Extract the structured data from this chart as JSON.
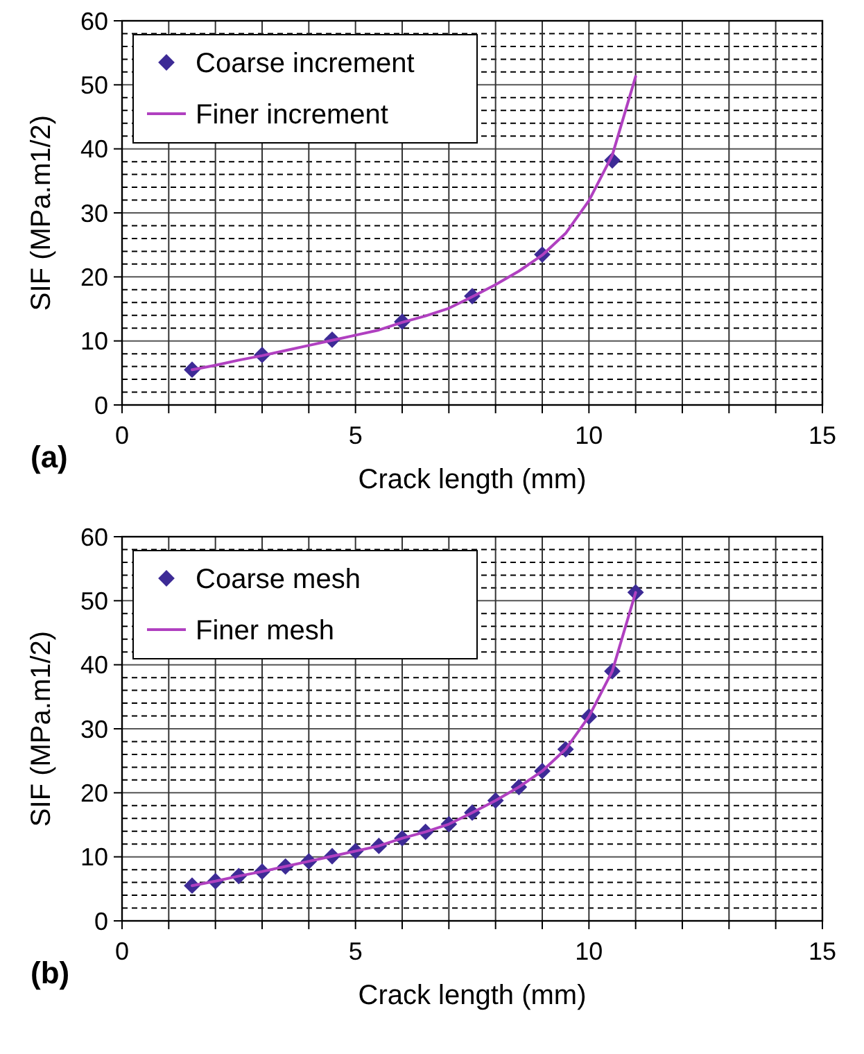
{
  "chart_data": [
    {
      "type": "line",
      "xlabel": "Crack length (mm)",
      "ylabel": "SIF (MPa.m1/2)",
      "annotations": [
        "(a)"
      ],
      "xlim": [
        0,
        15
      ],
      "ylim": [
        0,
        60
      ],
      "xticks": [
        0,
        {
          "value": 1,
          "label": null
        },
        {
          "value": 2,
          "label": null
        },
        {
          "value": 3,
          "label": null
        },
        {
          "value": 4,
          "label": null
        },
        5,
        {
          "value": 6,
          "label": null
        },
        {
          "value": 7,
          "label": null
        },
        {
          "value": 8,
          "label": null
        },
        {
          "value": 9,
          "label": null
        },
        10,
        {
          "value": 11,
          "label": null
        },
        {
          "value": 12,
          "label": null
        },
        {
          "value": 13,
          "label": null
        },
        {
          "value": 14,
          "label": null
        },
        15
      ],
      "yticks": [
        0,
        {
          "value": 2,
          "label": null
        },
        {
          "value": 4,
          "label": null
        },
        {
          "value": 6,
          "label": null
        },
        {
          "value": 8,
          "label": null
        },
        10,
        {
          "value": 12,
          "label": null
        },
        {
          "value": 14,
          "label": null
        },
        {
          "value": 16,
          "label": null
        },
        {
          "value": 18,
          "label": null
        },
        20,
        {
          "value": 22,
          "label": null
        },
        {
          "value": 24,
          "label": null
        },
        {
          "value": 26,
          "label": null
        },
        {
          "value": 28,
          "label": null
        },
        30,
        {
          "value": 32,
          "label": null
        },
        {
          "value": 34,
          "label": null
        },
        {
          "value": 36,
          "label": null
        },
        {
          "value": 38,
          "label": null
        },
        40,
        {
          "value": 42,
          "label": null
        },
        {
          "value": 44,
          "label": null
        },
        {
          "value": 46,
          "label": null
        },
        {
          "value": 48,
          "label": null
        },
        50,
        {
          "value": 52,
          "label": null
        },
        {
          "value": 54,
          "label": null
        },
        {
          "value": 56,
          "label": null
        },
        {
          "value": 58,
          "label": null
        },
        60
      ],
      "grid": true,
      "legend": "top left",
      "series": [
        {
          "name": "Coarse increment",
          "type": "scatter",
          "marker": "diamond",
          "color": "#3d2b96",
          "x": [
            1.5,
            3,
            4.5,
            6,
            7.5,
            9,
            10.5
          ],
          "values": [
            5.5,
            7.8,
            10.2,
            13,
            17,
            23.5,
            38.2
          ]
        },
        {
          "name": "Finer increment",
          "marker": "none",
          "color": "#b040c0",
          "x": [
            1.5,
            2,
            2.5,
            3,
            3.5,
            4,
            4.5,
            5,
            5.5,
            6,
            6.5,
            7,
            7.5,
            8,
            8.5,
            9,
            9.5,
            10,
            10.5,
            11
          ],
          "values": [
            5.5,
            6.2,
            7,
            7.7,
            8.5,
            9.3,
            10.1,
            10.9,
            11.7,
            12.9,
            13.9,
            15.1,
            16.9,
            18.8,
            20.9,
            23.4,
            26.8,
            31.9,
            39,
            51.3
          ]
        }
      ]
    },
    {
      "type": "line",
      "xlabel": "Crack length (mm)",
      "ylabel": "SIF (MPa.m1/2)",
      "annotations": [
        "(b)"
      ],
      "xlim": [
        0,
        15
      ],
      "ylim": [
        0,
        60
      ],
      "xticks": [
        0,
        {
          "value": 1,
          "label": null
        },
        {
          "value": 2,
          "label": null
        },
        {
          "value": 3,
          "label": null
        },
        {
          "value": 4,
          "label": null
        },
        5,
        {
          "value": 6,
          "label": null
        },
        {
          "value": 7,
          "label": null
        },
        {
          "value": 8,
          "label": null
        },
        {
          "value": 9,
          "label": null
        },
        10,
        {
          "value": 11,
          "label": null
        },
        {
          "value": 12,
          "label": null
        },
        {
          "value": 13,
          "label": null
        },
        {
          "value": 14,
          "label": null
        },
        15
      ],
      "yticks": [
        0,
        {
          "value": 2,
          "label": null
        },
        {
          "value": 4,
          "label": null
        },
        {
          "value": 6,
          "label": null
        },
        {
          "value": 8,
          "label": null
        },
        10,
        {
          "value": 12,
          "label": null
        },
        {
          "value": 14,
          "label": null
        },
        {
          "value": 16,
          "label": null
        },
        {
          "value": 18,
          "label": null
        },
        20,
        {
          "value": 22,
          "label": null
        },
        {
          "value": 24,
          "label": null
        },
        {
          "value": 26,
          "label": null
        },
        {
          "value": 28,
          "label": null
        },
        30,
        {
          "value": 32,
          "label": null
        },
        {
          "value": 34,
          "label": null
        },
        {
          "value": 36,
          "label": null
        },
        {
          "value": 38,
          "label": null
        },
        40,
        {
          "value": 42,
          "label": null
        },
        {
          "value": 44,
          "label": null
        },
        {
          "value": 46,
          "label": null
        },
        {
          "value": 48,
          "label": null
        },
        50,
        {
          "value": 52,
          "label": null
        },
        {
          "value": 54,
          "label": null
        },
        {
          "value": 56,
          "label": null
        },
        {
          "value": 58,
          "label": null
        },
        60
      ],
      "grid": true,
      "legend": "top left",
      "series": [
        {
          "name": "Coarse mesh",
          "type": "scatter",
          "marker": "diamond",
          "color": "#3d2b96",
          "x": [
            1.5,
            2,
            2.5,
            3,
            3.5,
            4,
            4.5,
            5,
            5.5,
            6,
            6.5,
            7,
            7.5,
            8,
            8.5,
            9,
            9.5,
            10,
            10.5,
            11
          ],
          "values": [
            5.5,
            6.2,
            7,
            7.7,
            8.5,
            9.3,
            10.1,
            10.9,
            11.7,
            12.9,
            13.9,
            15.1,
            16.9,
            18.8,
            20.9,
            23.4,
            26.8,
            31.9,
            39,
            51.3
          ]
        },
        {
          "name": "Finer mesh",
          "marker": "none",
          "color": "#b040c0",
          "x": [
            1.5,
            2,
            2.5,
            3,
            3.5,
            4,
            4.5,
            5,
            5.5,
            6,
            6.5,
            7,
            7.5,
            8,
            8.5,
            9,
            9.5,
            10,
            10.5,
            11
          ],
          "values": [
            5.5,
            6.2,
            7,
            7.7,
            8.5,
            9.3,
            10.1,
            10.9,
            11.7,
            12.9,
            13.9,
            15.1,
            16.9,
            18.8,
            20.9,
            23.4,
            26.8,
            31.9,
            39,
            51.3
          ]
        }
      ]
    }
  ]
}
